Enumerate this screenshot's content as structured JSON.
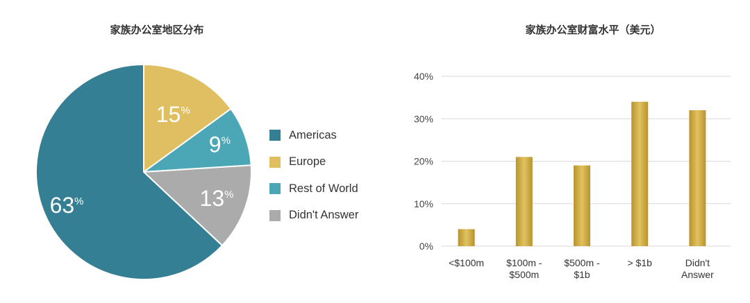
{
  "chart_data": [
    {
      "type": "pie",
      "title": "家族办公室地区分布",
      "slices": [
        {
          "name": "Americas",
          "value": 63,
          "label": "63",
          "color": "#347f93"
        },
        {
          "name": "Europe",
          "value": 15,
          "label": "15",
          "color": "#dfbf61"
        },
        {
          "name": "Rest of World",
          "value": 9,
          "label": "9",
          "color": "#4ba6b5"
        },
        {
          "name": "Didn't Answer",
          "value": 13,
          "label": "13",
          "color": "#ababab"
        }
      ],
      "label_unit": "%",
      "legend_position": "right"
    },
    {
      "type": "bar",
      "title": "家族办公室财富水平（美元）",
      "categories": [
        [
          "<$100m"
        ],
        [
          "$100m -",
          "$500m"
        ],
        [
          "$500m -",
          "$1b"
        ],
        [
          "> $1b"
        ],
        [
          "Didn't",
          "Answer"
        ]
      ],
      "values": [
        4,
        21,
        19,
        34,
        32
      ],
      "ylim": [
        0,
        40
      ],
      "yticks": [
        "0%",
        "10%",
        "20%",
        "30%",
        "40%"
      ],
      "grid": true,
      "bar_color": "#c9a640"
    }
  ]
}
